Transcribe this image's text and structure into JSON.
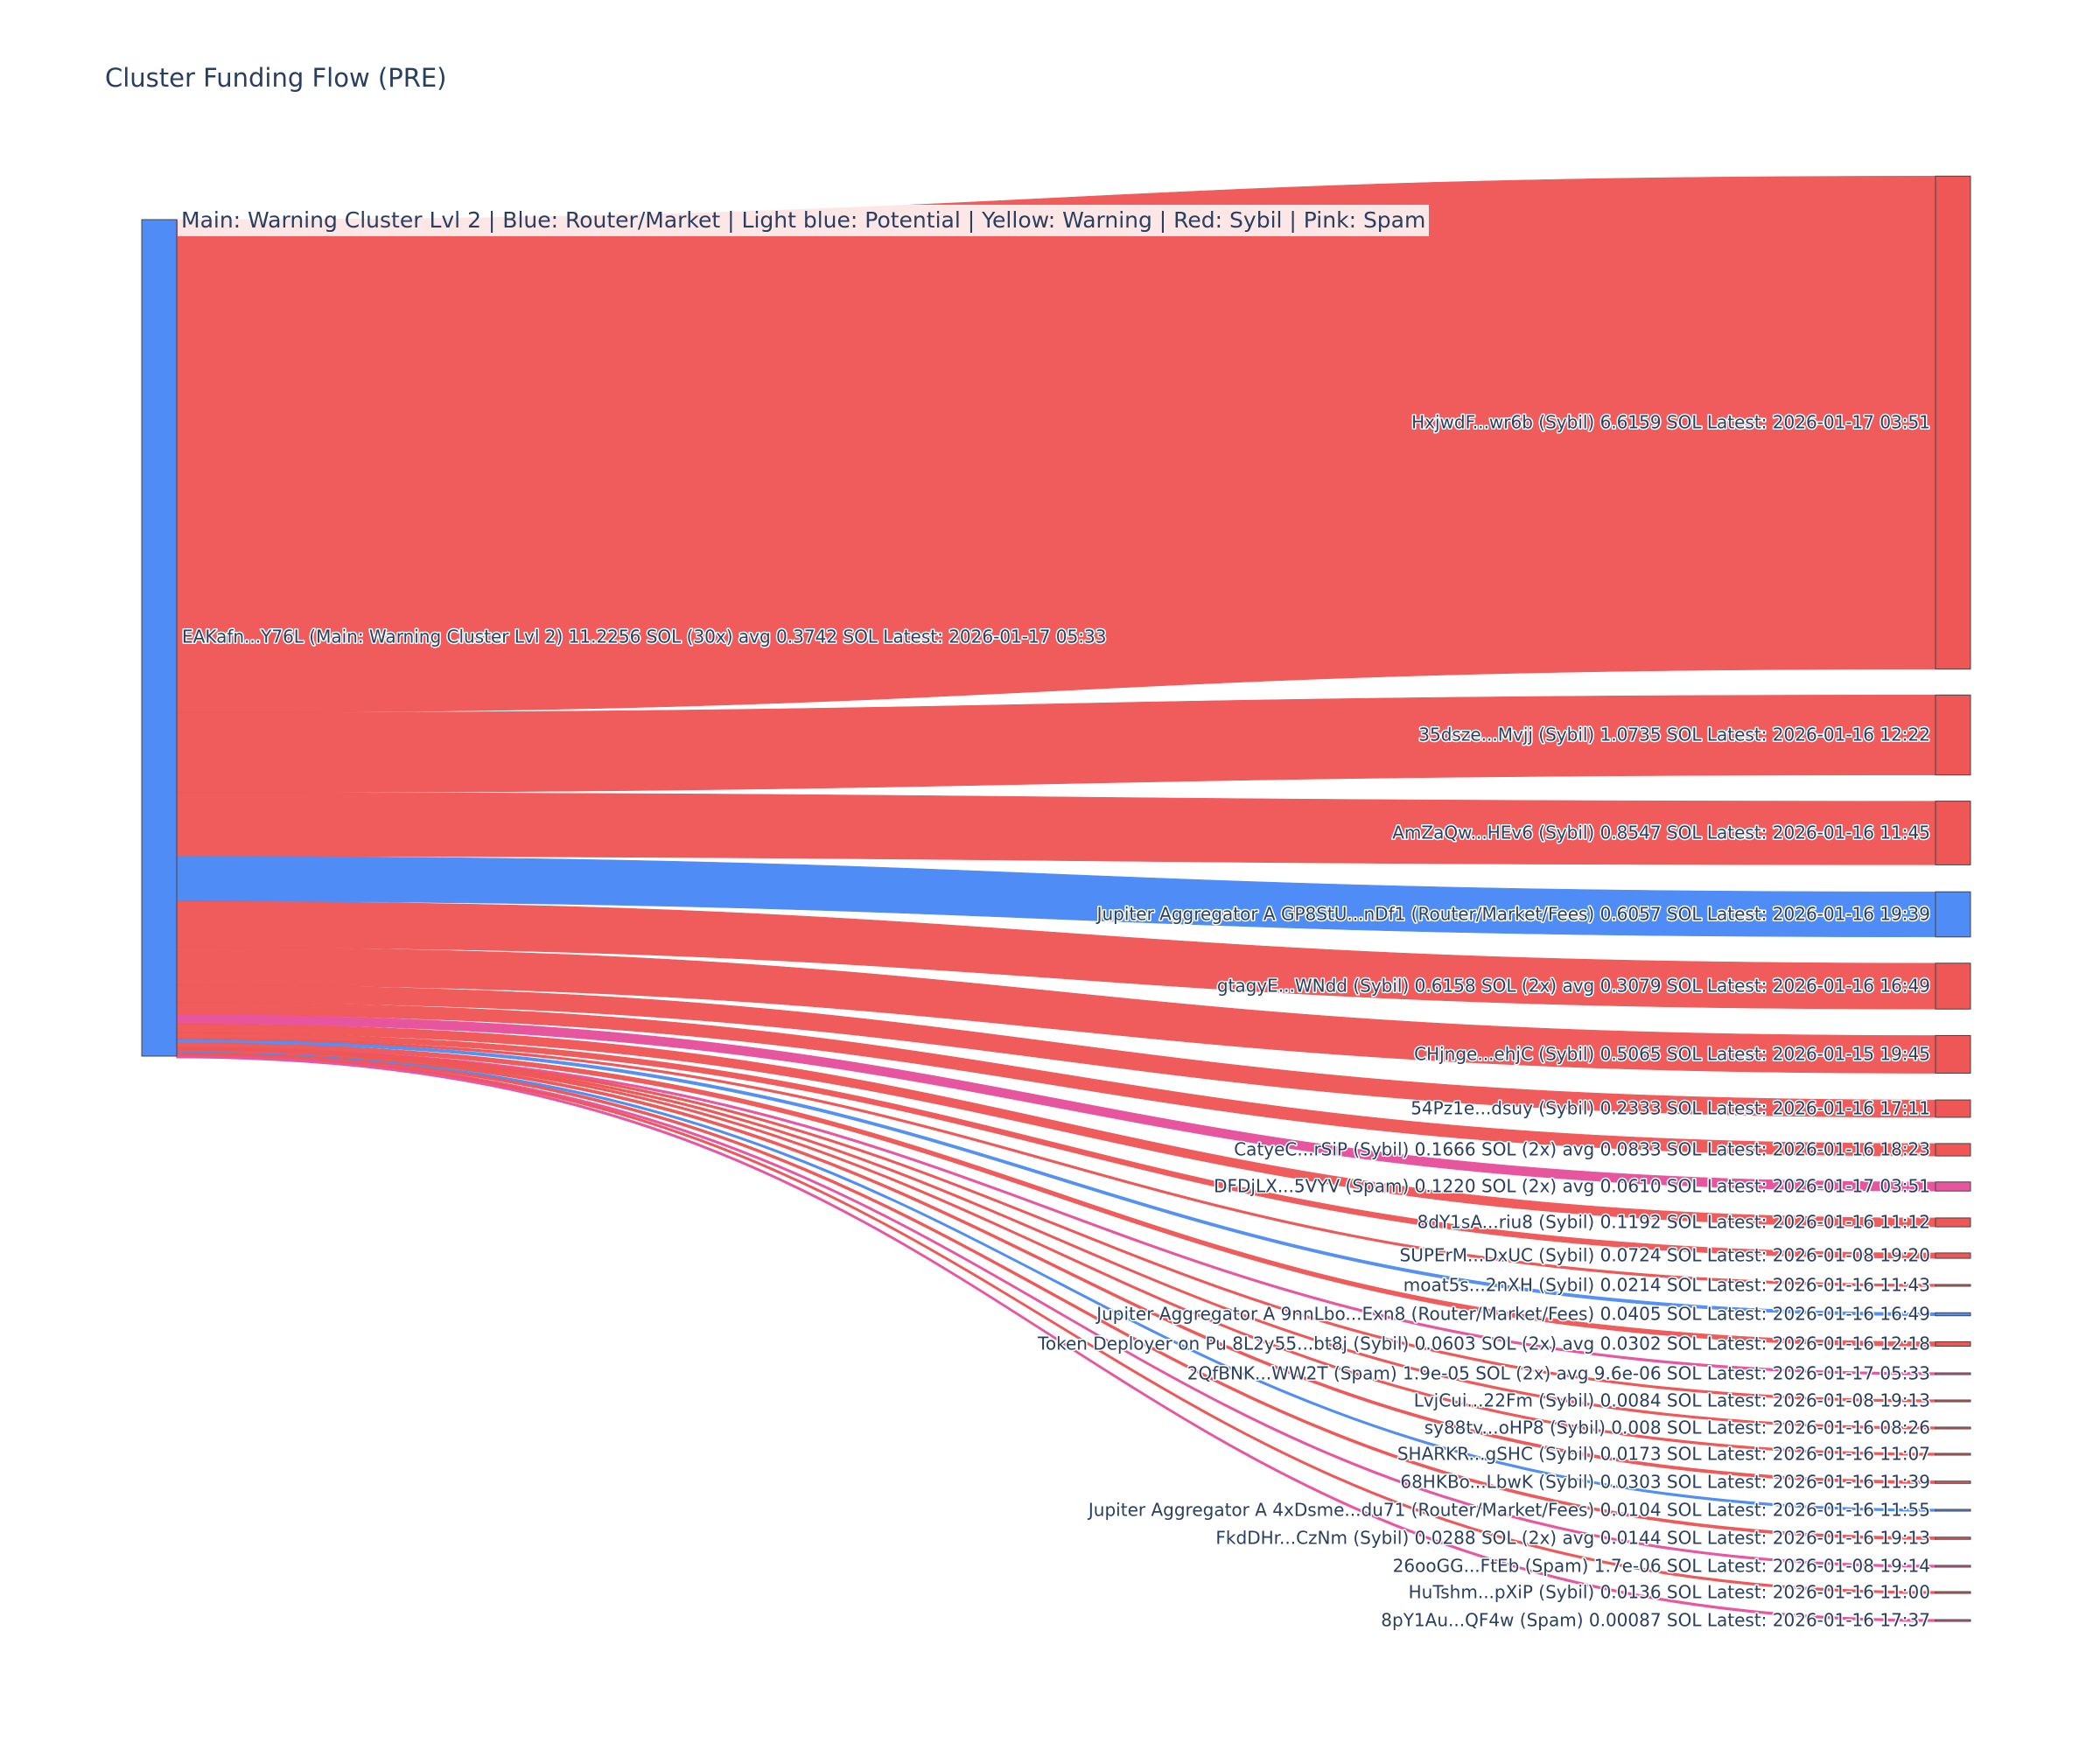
{
  "title": "Cluster Funding Flow (PRE)",
  "legend_text": "Main: Warning Cluster Lvl 2  |  Blue: Router/Market | Light blue: Potential | Yellow: Warning | Red: Sybil | Pink: Spam",
  "colors": {
    "router": "#4f8cf5",
    "sybil": "#ef5656",
    "spam": "#e8559f",
    "node_border": "#444444"
  },
  "chart_data": {
    "type": "sankey",
    "title": "Cluster Funding Flow (PRE)",
    "source": {
      "label": "EAKafn...Y76L (Main: Warning Cluster Lvl 2) 11.2256 SOL (30x) avg 0.3742 SOL Latest: 2026-01-17 05:33",
      "value": 11.2256,
      "category": "router"
    },
    "targets": [
      {
        "label": "HxjwdF...wr6b (Sybil) 6.6159 SOL Latest: 2026-01-17 03:51",
        "value": 6.6159,
        "category": "sybil"
      },
      {
        "label": "35dsze...Mvjj (Sybil) 1.0735 SOL Latest: 2026-01-16 12:22",
        "value": 1.0735,
        "category": "sybil"
      },
      {
        "label": "AmZaQw...HEv6 (Sybil) 0.8547 SOL Latest: 2026-01-16 11:45",
        "value": 0.8547,
        "category": "sybil"
      },
      {
        "label": "Jupiter Aggregator A GP8StU...nDf1 (Router/Market/Fees) 0.6057 SOL Latest: 2026-01-16 19:39",
        "value": 0.6057,
        "category": "router"
      },
      {
        "label": "gtagyE...WNdd (Sybil) 0.6158 SOL (2x) avg 0.3079 SOL Latest: 2026-01-16 16:49",
        "value": 0.6158,
        "category": "sybil"
      },
      {
        "label": "CHjnge...ehjC (Sybil) 0.5065 SOL Latest: 2026-01-15 19:45",
        "value": 0.5065,
        "category": "sybil"
      },
      {
        "label": "54Pz1e...dsuy (Sybil) 0.2333 SOL Latest: 2026-01-16 17:11",
        "value": 0.2333,
        "category": "sybil"
      },
      {
        "label": "CatyeC...rSiP (Sybil) 0.1666 SOL (2x) avg 0.0833 SOL Latest: 2026-01-16 18:23",
        "value": 0.1666,
        "category": "sybil"
      },
      {
        "label": "DFDjLX...5VYV (Spam) 0.1220 SOL (2x) avg 0.0610 SOL Latest: 2026-01-17 03:51",
        "value": 0.122,
        "category": "spam"
      },
      {
        "label": "8dY1sA...riu8 (Sybil) 0.1192 SOL Latest: 2026-01-16 11:12",
        "value": 0.1192,
        "category": "sybil"
      },
      {
        "label": "SUPErM...DxUC (Sybil) 0.0724 SOL Latest: 2026-01-08 19:20",
        "value": 0.0724,
        "category": "sybil"
      },
      {
        "label": "moat5s...2nXH (Sybil) 0.0214 SOL Latest: 2026-01-16 11:43",
        "value": 0.0214,
        "category": "sybil"
      },
      {
        "label": "Jupiter Aggregator A 9nnLbo...Exn8 (Router/Market/Fees) 0.0405 SOL Latest: 2026-01-16 16:49",
        "value": 0.0405,
        "category": "router"
      },
      {
        "label": "Token Deployer on Pu 8L2y55...bt8j (Sybil) 0.0603 SOL (2x) avg 0.0302 SOL Latest: 2026-01-16 12:18",
        "value": 0.0603,
        "category": "sybil"
      },
      {
        "label": "2QfBNK...WW2T (Spam) 1.9e-05 SOL (2x) avg 9.6e-06 SOL Latest: 2026-01-17 05:33",
        "value": 1.9e-05,
        "category": "spam"
      },
      {
        "label": "LvjCui...22Fm (Sybil) 0.0084 SOL Latest: 2026-01-08 19:13",
        "value": 0.0084,
        "category": "sybil"
      },
      {
        "label": "sy88tv...oHP8 (Sybil) 0.008 SOL Latest: 2026-01-16 08:26",
        "value": 0.008,
        "category": "sybil"
      },
      {
        "label": "SHARKR...gSHC (Sybil) 0.0173 SOL Latest: 2026-01-16 11:07",
        "value": 0.0173,
        "category": "sybil"
      },
      {
        "label": "68HKBo...LbwK (Sybil) 0.0303 SOL Latest: 2026-01-16 11:39",
        "value": 0.0303,
        "category": "sybil"
      },
      {
        "label": "Jupiter Aggregator A 4xDsme...du71 (Router/Market/Fees) 0.0104 SOL Latest: 2026-01-16 11:55",
        "value": 0.0104,
        "category": "router"
      },
      {
        "label": "FkdDHr...CzNm (Sybil) 0.0288 SOL (2x) avg 0.0144 SOL Latest: 2026-01-16 19:13",
        "value": 0.0288,
        "category": "sybil"
      },
      {
        "label": "26ooGG...FtEb (Spam) 1.7e-06 SOL Latest: 2026-01-08 19:14",
        "value": 1.7e-06,
        "category": "spam"
      },
      {
        "label": "HuTshm...pXiP (Sybil) 0.0136 SOL Latest: 2026-01-16 11:00",
        "value": 0.0136,
        "category": "sybil"
      },
      {
        "label": "8pY1Au...QF4w (Spam) 0.00087 SOL Latest: 2026-01-16 17:37",
        "value": 0.00087,
        "category": "spam"
      }
    ]
  }
}
